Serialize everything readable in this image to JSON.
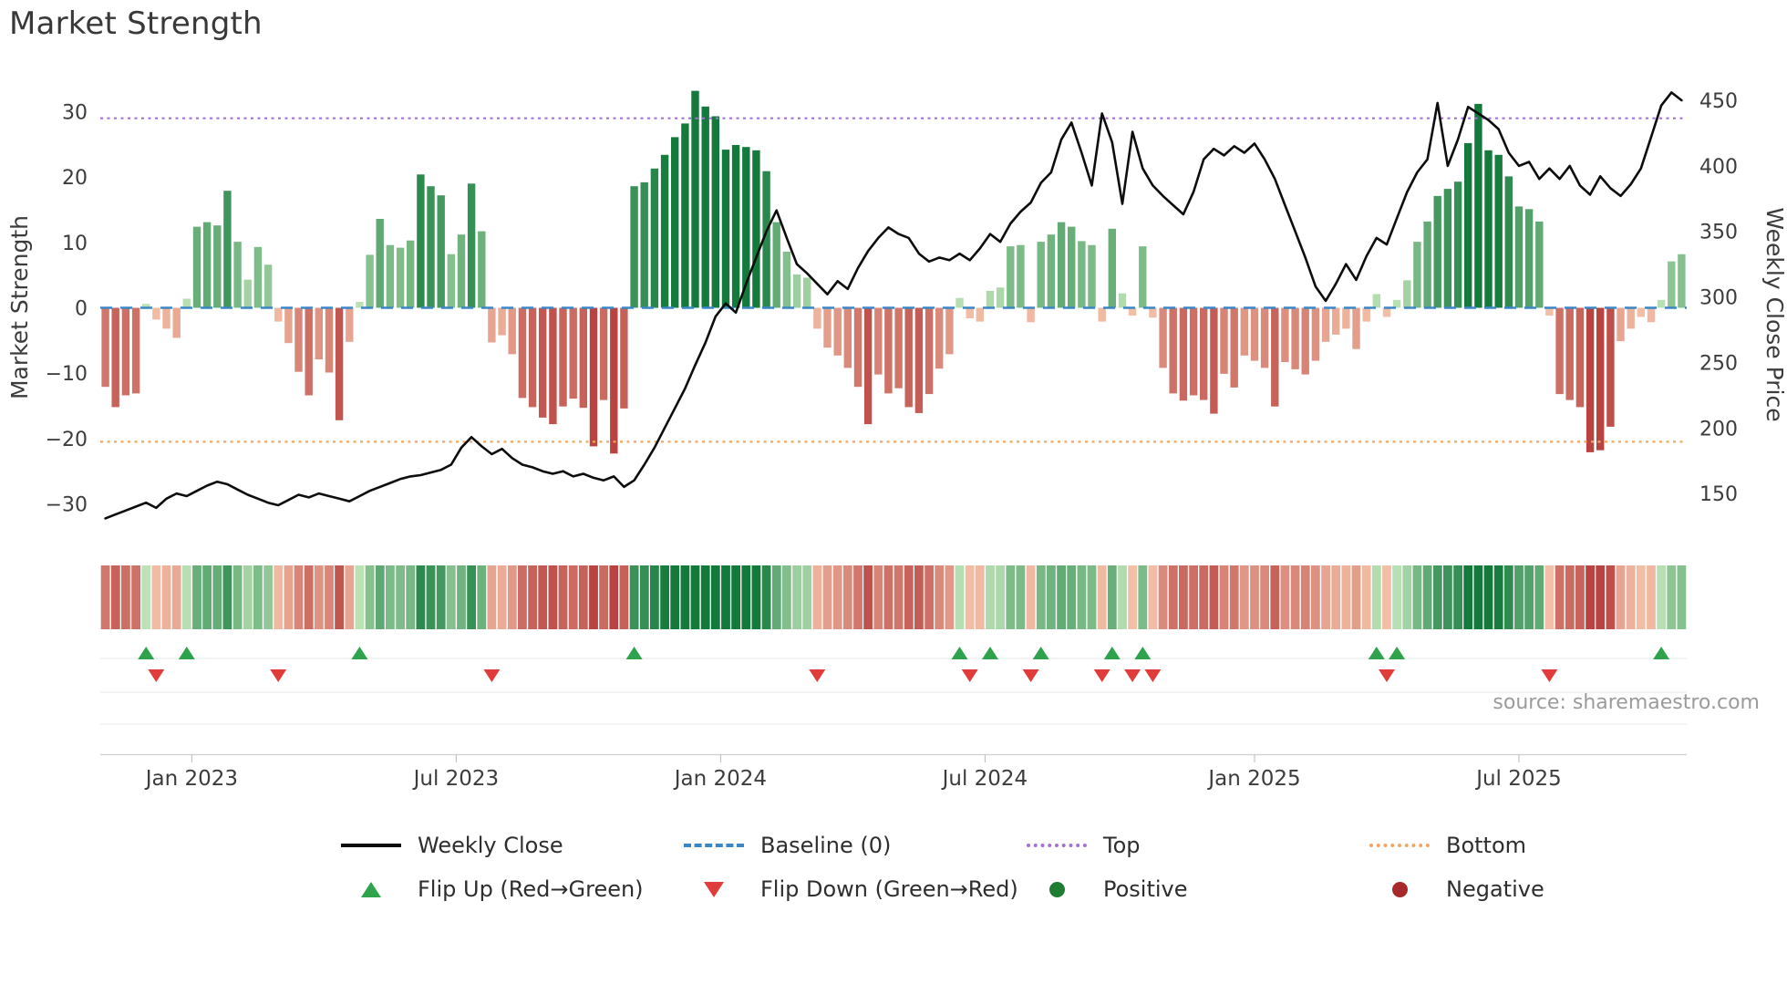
{
  "title": "Market Strength",
  "source": "source: sharemaestro.com",
  "y_left": {
    "label": "Market Strength",
    "ticks": [
      30,
      20,
      10,
      0,
      -10,
      -20,
      -30
    ]
  },
  "y_right": {
    "label": "Weekly Close Price",
    "ticks": [
      450,
      400,
      350,
      300,
      250,
      200,
      150
    ]
  },
  "x_ticks": [
    {
      "label": "Jan 2023",
      "week": 8.5
    },
    {
      "label": "Jul 2023",
      "week": 34.5
    },
    {
      "label": "Jan 2024",
      "week": 60.5
    },
    {
      "label": "Jul 2024",
      "week": 86.5
    },
    {
      "label": "Jan 2025",
      "week": 113
    },
    {
      "label": "Jul 2025",
      "week": 139
    }
  ],
  "colors": {
    "positive_dark": "#137a3c",
    "positive_light": "#c2e5ba",
    "negative_dark": "#b84340",
    "negative_light": "#f7c7ae",
    "price_line": "#0d0d0d",
    "baseline": "#3c86c6",
    "top": "#a472d4",
    "bottom": "#f3a660",
    "flip_up": "#2fa34c",
    "flip_down": "#e03c3c",
    "positive_dot": "#1e7d33",
    "negative_dot": "#a62a2a"
  },
  "legend": {
    "items": [
      {
        "label": "Weekly Close",
        "swatch": "line"
      },
      {
        "label": "Baseline (0)",
        "swatch": "baseline"
      },
      {
        "label": "Top",
        "swatch": "top"
      },
      {
        "label": "Bottom",
        "swatch": "bottom"
      },
      {
        "label": "Flip Up (Red→Green)",
        "swatch": "flip-up"
      },
      {
        "label": "Flip Down (Green→Red)",
        "swatch": "flip-down"
      },
      {
        "label": "Positive",
        "swatch": "positive"
      },
      {
        "label": "Negative",
        "swatch": "negative"
      }
    ]
  },
  "chart_data": [
    {
      "type": "bar",
      "name": "Market Strength oscillator",
      "x": "weekly, Nov 2022 - Oct 2025 (156 weeks)",
      "axis": "left",
      "ylim": [
        -33,
        35
      ],
      "baseline": 0,
      "top_threshold": 29,
      "bottom_threshold": -20.5,
      "values": [
        -12.1,
        -15.2,
        -13.4,
        -13.1,
        0.6,
        -1.8,
        -3.2,
        -4.6,
        1.4,
        12.4,
        13.1,
        12.6,
        17.9,
        10.1,
        4.3,
        9.3,
        6.6,
        -2.1,
        -5.4,
        -9.8,
        -13.4,
        -7.9,
        -9.9,
        -17.2,
        -5.2,
        0.9,
        8.1,
        13.6,
        9.6,
        9.2,
        10.3,
        20.4,
        18.6,
        17.2,
        8.2,
        11.2,
        19,
        11.7,
        -5.3,
        -4.2,
        -7.1,
        -13.8,
        -15.2,
        -16.8,
        -17.8,
        -15.1,
        -13.9,
        -15.3,
        -21.2,
        -14.1,
        -22.3,
        -15.4,
        18.6,
        19.2,
        21.3,
        23.4,
        26.1,
        28.2,
        33.2,
        30.8,
        29.3,
        24.2,
        24.9,
        24.6,
        24.1,
        20.9,
        13.1,
        8.6,
        5.1,
        4.6,
        -3.2,
        -6.1,
        -7.3,
        -9.2,
        -12.1,
        -17.8,
        -10.2,
        -13.1,
        -12.3,
        -15.2,
        -16.1,
        -13.2,
        -9.3,
        -7.1,
        1.5,
        -1.6,
        -2.1,
        2.6,
        3.1,
        9.4,
        9.6,
        -2.2,
        10.1,
        11.2,
        13.1,
        12.4,
        10.2,
        9.6,
        -2.1,
        12.1,
        2.2,
        -1.2,
        9.4,
        -1.5,
        -9.2,
        -13.1,
        -14.2,
        -13.4,
        -14.1,
        -16.2,
        -10.1,
        -12.2,
        -7.3,
        -8.1,
        -9.2,
        -15.1,
        -8.3,
        -9.4,
        -10.2,
        -8.1,
        -5.2,
        -4.1,
        -3.2,
        -6.3,
        -2.1,
        2.1,
        -1.4,
        1.2,
        4.2,
        10.1,
        13.2,
        17.1,
        18.2,
        19.3,
        25.2,
        31.2,
        24.1,
        23.4,
        20.1,
        15.5,
        15.1,
        13.2,
        -1.2,
        -13.2,
        -14.1,
        -15.2,
        -22.1,
        -21.8,
        -18.2,
        -5.1,
        -3.2,
        -1.4,
        -2.2,
        1.2,
        7.1,
        8.2
      ]
    },
    {
      "type": "line",
      "name": "Weekly Close",
      "axis": "right",
      "ylim": [
        130,
        460
      ],
      "values": [
        131,
        134,
        137,
        140,
        143,
        139,
        146,
        150,
        148,
        152,
        156,
        159,
        157,
        153,
        149,
        146,
        143,
        141,
        145,
        149,
        147,
        150,
        148,
        146,
        144,
        148,
        152,
        155,
        158,
        161,
        163,
        164,
        166,
        168,
        172,
        185,
        193,
        186,
        180,
        184,
        177,
        172,
        170,
        167,
        165,
        167,
        163,
        165,
        162,
        160,
        163,
        155,
        160,
        172,
        185,
        200,
        215,
        230,
        248,
        265,
        285,
        295,
        288,
        310,
        330,
        350,
        366,
        345,
        325,
        318,
        310,
        302,
        312,
        306,
        322,
        335,
        345,
        353,
        348,
        345,
        333,
        327,
        330,
        328,
        333,
        328,
        337,
        348,
        342,
        356,
        365,
        372,
        387,
        395,
        420,
        433,
        410,
        385,
        440,
        418,
        371,
        426,
        398,
        385,
        377,
        370,
        363,
        380,
        405,
        413,
        408,
        415,
        410,
        417,
        405,
        390,
        370,
        350,
        330,
        308,
        297,
        310,
        325,
        313,
        331,
        345,
        340,
        360,
        380,
        395,
        405,
        448,
        400,
        420,
        445,
        440,
        435,
        428,
        410,
        400,
        403,
        390,
        398,
        390,
        400,
        385,
        378,
        392,
        383,
        377,
        386,
        398,
        422,
        446,
        456,
        450
      ]
    },
    {
      "type": "heatmap",
      "name": "Strength color strip",
      "note": "same values and color scale as the bar series"
    },
    {
      "type": "scatter",
      "name": "Flip markers",
      "flip_up_weeks": [
        4,
        8,
        25,
        52,
        84,
        87,
        92,
        99,
        102,
        125,
        127,
        153
      ],
      "flip_down_weeks": [
        5,
        17,
        38,
        70,
        85,
        91,
        98,
        101,
        103,
        126,
        142
      ]
    }
  ]
}
